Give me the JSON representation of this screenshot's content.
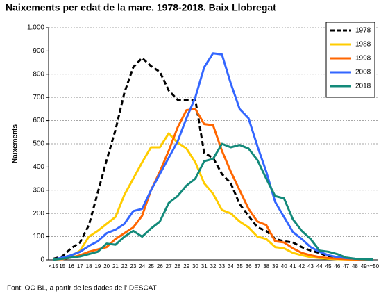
{
  "chart_data": {
    "type": "line",
    "title": "Naixements per edat de la mare. 1978-2018. Baix Llobregat",
    "y_label": "Naixements",
    "source": "Font: OC-BL, a partir de les dades de l'IDESCAT",
    "categories": [
      "<15",
      "15",
      "16",
      "17",
      "18",
      "19",
      "20",
      "21",
      "22",
      "23",
      "24",
      "25",
      "26",
      "27",
      "28",
      "29",
      "30",
      "31",
      "32",
      "33",
      "34",
      "35",
      "36",
      "37",
      "38",
      "39",
      "40",
      "41",
      "42",
      "43",
      "44",
      "45",
      "46",
      "47",
      "48",
      "49",
      ">=50"
    ],
    "series": [
      {
        "name": "1978",
        "color": "#000000",
        "dashed": true,
        "values": [
          5,
          15,
          50,
          75,
          150,
          290,
          430,
          560,
          720,
          830,
          870,
          835,
          810,
          730,
          690,
          690,
          690,
          460,
          440,
          370,
          330,
          240,
          190,
          140,
          125,
          90,
          80,
          75,
          55,
          40,
          30,
          15,
          10,
          5,
          3,
          2,
          1
        ]
      },
      {
        "name": "1988",
        "color": "#ffcc00",
        "values": [
          2,
          5,
          15,
          40,
          100,
          125,
          155,
          185,
          280,
          350,
          420,
          485,
          485,
          545,
          505,
          480,
          420,
          330,
          285,
          215,
          200,
          165,
          140,
          100,
          90,
          55,
          50,
          30,
          20,
          12,
          8,
          5,
          3,
          2,
          1,
          1,
          0
        ]
      },
      {
        "name": "1998",
        "color": "#ff6600",
        "values": [
          1,
          3,
          10,
          20,
          35,
          45,
          55,
          90,
          115,
          140,
          190,
          300,
          380,
          470,
          570,
          645,
          650,
          585,
          580,
          470,
          380,
          300,
          220,
          165,
          150,
          80,
          75,
          50,
          30,
          20,
          12,
          8,
          5,
          3,
          2,
          1,
          0
        ]
      },
      {
        "name": "2008",
        "color": "#3366ff",
        "values": [
          2,
          10,
          20,
          35,
          60,
          80,
          115,
          130,
          155,
          210,
          220,
          300,
          370,
          440,
          510,
          610,
          700,
          830,
          890,
          885,
          760,
          650,
          610,
          490,
          380,
          250,
          185,
          120,
          90,
          55,
          35,
          20,
          12,
          8,
          5,
          3,
          2
        ]
      },
      {
        "name": "2018",
        "color": "#138a7a",
        "values": [
          1,
          5,
          10,
          15,
          25,
          35,
          70,
          65,
          100,
          125,
          100,
          135,
          165,
          245,
          275,
          320,
          350,
          425,
          435,
          500,
          485,
          495,
          480,
          430,
          350,
          275,
          265,
          175,
          125,
          90,
          40,
          35,
          25,
          10,
          5,
          3,
          2
        ]
      }
    ],
    "ylim": [
      0,
      1000
    ],
    "yticks": [
      0,
      100,
      200,
      300,
      400,
      500,
      600,
      700,
      800,
      900,
      {
        "value": 1000,
        "label": "1.000"
      }
    ],
    "grid": true,
    "legend": "top-right"
  }
}
